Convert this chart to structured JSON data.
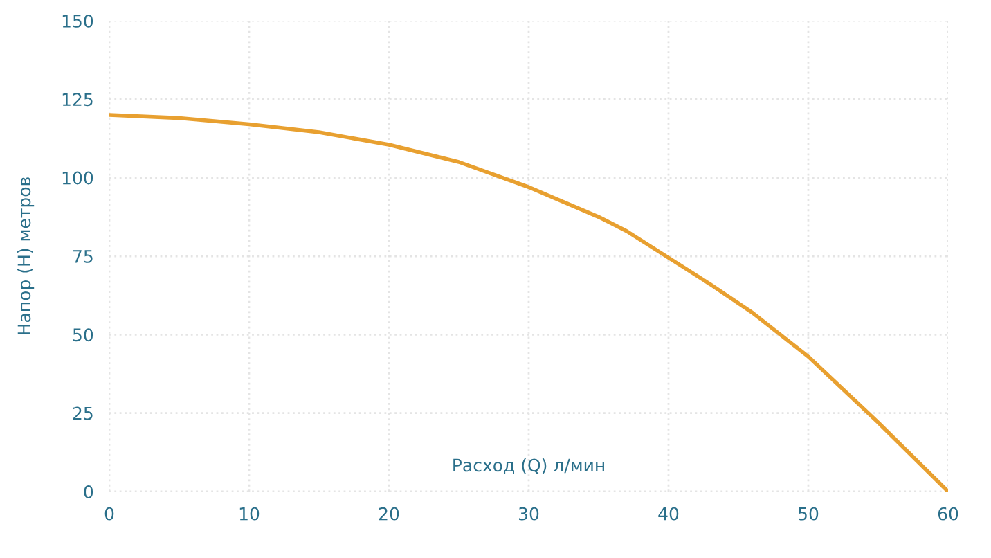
{
  "chart_data": {
    "type": "line",
    "xlabel": "Расход (Q) л/мин",
    "ylabel": "Напор (H) метров",
    "x": [
      0,
      5,
      10,
      15,
      20,
      25,
      30,
      35,
      37,
      40,
      43,
      46,
      50,
      55,
      60
    ],
    "series": [
      {
        "color": "#e8a030",
        "values": [
          120,
          119,
          117,
          114.5,
          110.5,
          105,
          97,
          87.5,
          83,
          74.5,
          66,
          57,
          43,
          22,
          0
        ]
      }
    ],
    "xlim": [
      0,
      60
    ],
    "ylim": [
      0,
      150
    ],
    "xticks": [
      0,
      10,
      20,
      30,
      40,
      50,
      60
    ],
    "yticks": [
      0,
      25,
      50,
      75,
      100,
      125,
      150
    ],
    "grid": true,
    "legend": false,
    "marker": "none",
    "line_style": "solid"
  }
}
